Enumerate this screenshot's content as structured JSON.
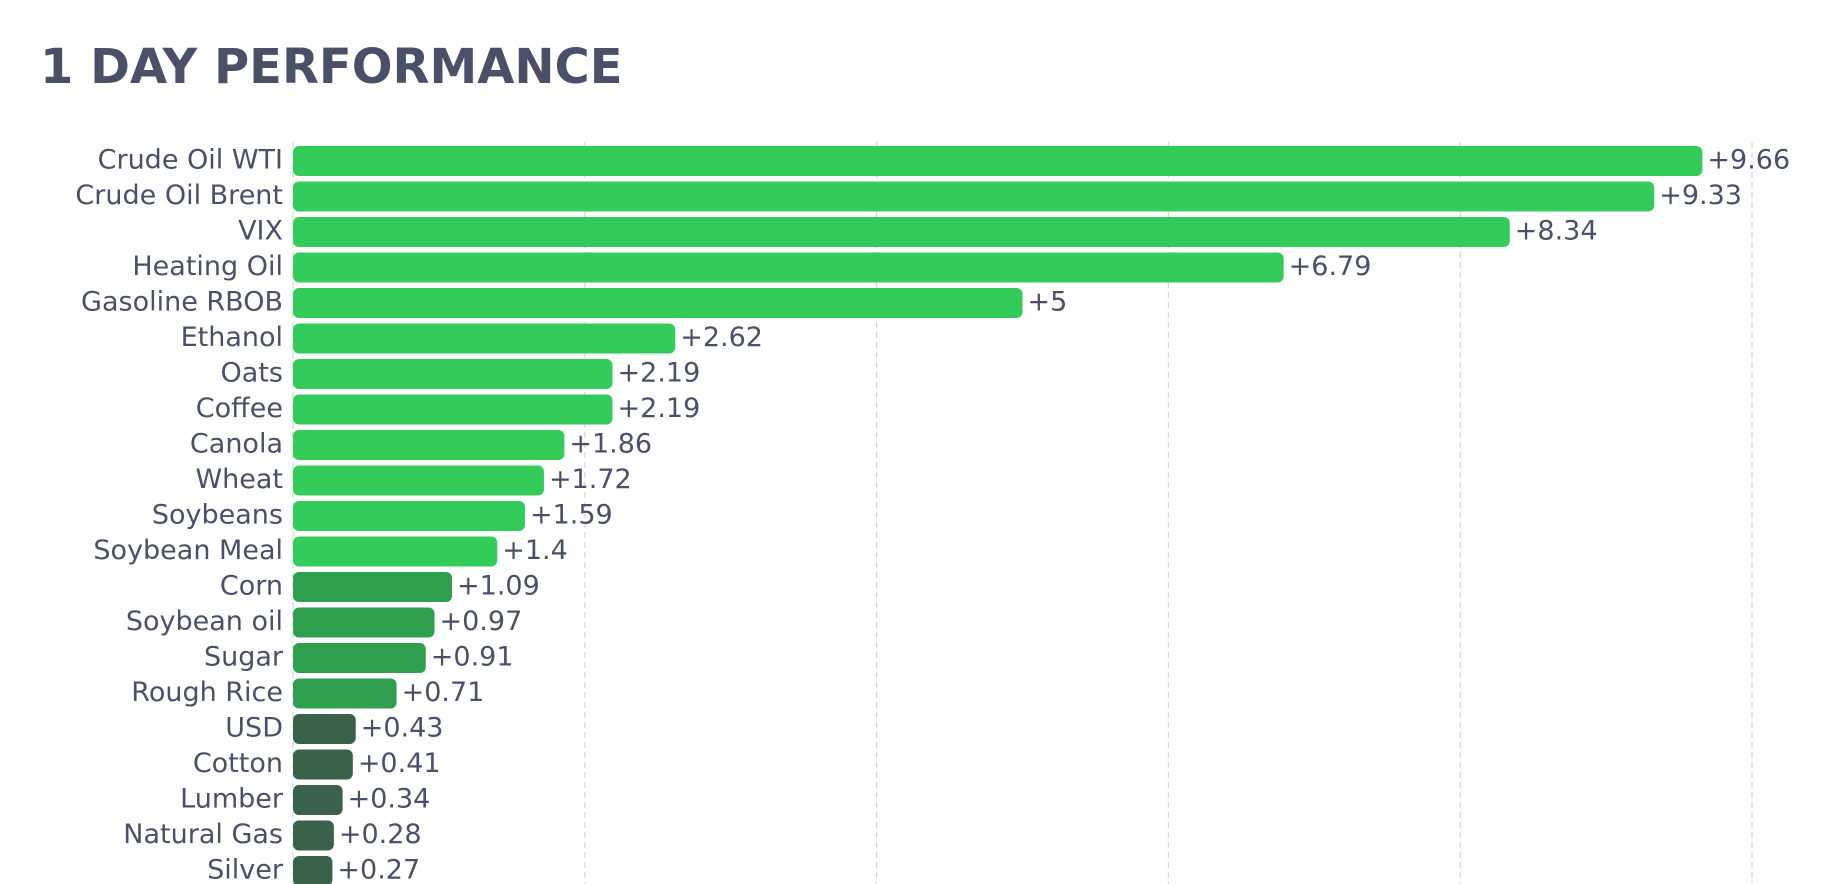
{
  "chart_data": {
    "type": "hbar",
    "title": "1 DAY PERFORMANCE",
    "categories": [
      "Crude Oil WTI",
      "Crude Oil Brent",
      "VIX",
      "Heating Oil",
      "Gasoline RBOB",
      "Ethanol",
      "Oats",
      "Coffee",
      "Canola",
      "Wheat",
      "Soybeans",
      "Soybean Meal",
      "Corn",
      "Soybean oil",
      "Sugar",
      "Rough Rice",
      "USD",
      "Cotton",
      "Lumber",
      "Natural Gas",
      "Silver"
    ],
    "values": [
      9.66,
      9.33,
      8.34,
      6.79,
      5,
      2.62,
      2.19,
      2.19,
      1.86,
      1.72,
      1.59,
      1.4,
      1.09,
      0.97,
      0.91,
      0.71,
      0.43,
      0.41,
      0.34,
      0.28,
      0.27
    ],
    "value_labels": [
      "+9.66",
      "+9.33",
      "+8.34",
      "+6.79",
      "+5",
      "+2.62",
      "+2.19",
      "+2.19",
      "+1.86",
      "+1.72",
      "+1.59",
      "+1.4",
      "+1.09",
      "+0.97",
      "+0.91",
      "+0.71",
      "+0.43",
      "+0.41",
      "+0.34",
      "+0.28",
      "+0.27"
    ],
    "colors": [
      "#33cc5a",
      "#33cc5a",
      "#33cc5a",
      "#33cc5a",
      "#33cc5a",
      "#33cc5a",
      "#33cc5a",
      "#33cc5a",
      "#33cc5a",
      "#33cc5a",
      "#33cc5a",
      "#33cc5a",
      "#2f9e4f",
      "#2f9e4f",
      "#2f9e4f",
      "#2f9e4f",
      "#3a6149",
      "#3a6149",
      "#3a6149",
      "#3a6149",
      "#3a6149"
    ],
    "xlim": [
      0,
      10
    ],
    "xticks": [
      0,
      2,
      4,
      6,
      8,
      10
    ],
    "grid": true
  }
}
